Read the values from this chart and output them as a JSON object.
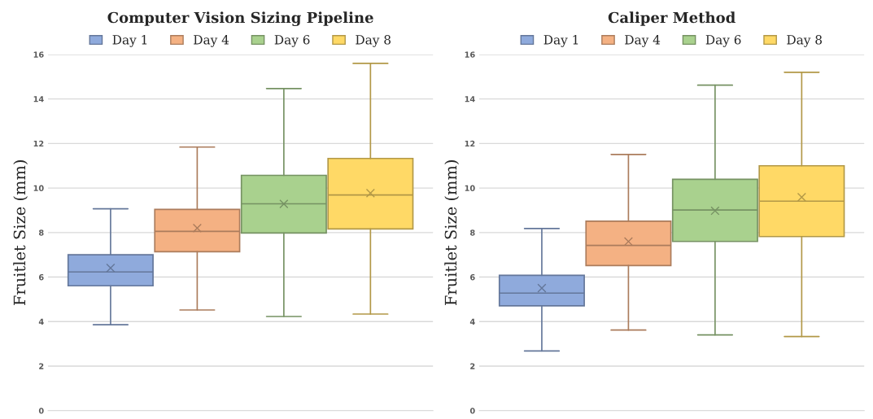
{
  "chart_data": [
    {
      "type": "box",
      "title": "Computer Vision Sizing Pipeline",
      "ylabel": "Fruitlet Size (mm)",
      "categories": [
        null
      ],
      "ylim": [
        0,
        16
      ],
      "yticks": [
        0,
        2,
        4,
        6,
        8,
        10,
        12,
        14,
        16
      ],
      "grid": "y",
      "legend": "top",
      "series": [
        {
          "name": "Day 1",
          "color": "#8faadc",
          "boxes": [
            {
              "low": 3.86,
              "q1": 5.61,
              "median": 6.23,
              "q3": 7.0,
              "high": 9.07,
              "mean": 6.41
            }
          ]
        },
        {
          "name": "Day 4",
          "color": "#f4b183",
          "boxes": [
            {
              "low": 4.52,
              "q1": 7.14,
              "median": 8.05,
              "q3": 9.04,
              "high": 11.84,
              "mean": 8.2
            }
          ]
        },
        {
          "name": "Day 6",
          "color": "#a9d18e",
          "boxes": [
            {
              "low": 4.23,
              "q1": 7.98,
              "median": 9.29,
              "q3": 10.57,
              "high": 14.47,
              "mean": 9.29
            }
          ]
        },
        {
          "name": "Day 8",
          "color": "#ffd966",
          "boxes": [
            {
              "low": 4.34,
              "q1": 8.16,
              "median": 9.69,
              "q3": 11.33,
              "high": 15.6,
              "mean": 9.77
            }
          ]
        }
      ]
    },
    {
      "type": "box",
      "title": "Caliper Method",
      "ylabel": "Fruitlet Size (mm)",
      "categories": [
        null
      ],
      "ylim": [
        0,
        16
      ],
      "yticks": [
        0,
        2,
        4,
        6,
        8,
        10,
        12,
        14,
        16
      ],
      "grid": "y",
      "legend": "top",
      "series": [
        {
          "name": "Day 1",
          "color": "#8faadc",
          "boxes": [
            {
              "low": 2.68,
              "q1": 4.71,
              "median": 5.28,
              "q3": 6.08,
              "high": 8.18,
              "mean": 5.5
            }
          ]
        },
        {
          "name": "Day 4",
          "color": "#f4b183",
          "boxes": [
            {
              "low": 3.62,
              "q1": 6.52,
              "median": 7.42,
              "q3": 8.51,
              "high": 11.51,
              "mean": 7.6
            }
          ]
        },
        {
          "name": "Day 6",
          "color": "#a9d18e",
          "boxes": [
            {
              "low": 3.4,
              "q1": 7.6,
              "median": 9.01,
              "q3": 10.39,
              "high": 14.62,
              "mean": 8.98
            }
          ]
        },
        {
          "name": "Day 8",
          "color": "#ffd966",
          "boxes": [
            {
              "low": 3.33,
              "q1": 7.82,
              "median": 9.41,
              "q3": 11.0,
              "high": 15.2,
              "mean": 9.59
            }
          ]
        }
      ]
    }
  ]
}
